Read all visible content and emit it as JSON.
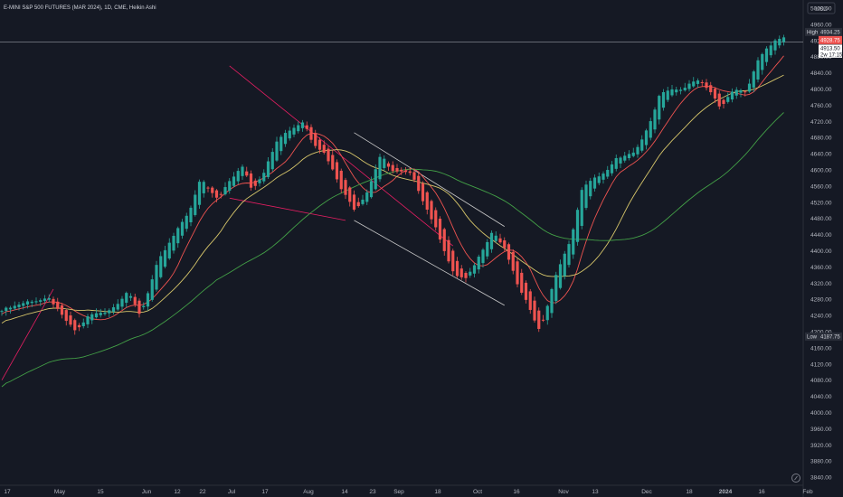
{
  "symbol_title": "E-MINI S&P 500 FUTURES (MAR 2024), 1D, CME, Heikin Ashi",
  "currency": "USD",
  "colors": {
    "background": "#151924",
    "up": "#26a69a",
    "down": "#ef5350",
    "ma_red": "#ef5350",
    "ma_yellow": "#d6c56a",
    "ma_green": "#43a047",
    "trend_pink": "#e91e63",
    "trend_white": "#c8c8c8",
    "axis_text": "#b2b5be",
    "high_badge": "#2a2e39",
    "price_badge": "#ef5350"
  },
  "y_axis_ticks": [
    "5000.00",
    "4960.00",
    "4920.00",
    "4880.00",
    "4840.00",
    "4800.00",
    "4760.00",
    "4720.00",
    "4680.00",
    "4640.00",
    "4600.00",
    "4560.00",
    "4520.00",
    "4480.00",
    "4440.00",
    "4400.00",
    "4360.00",
    "4320.00",
    "4280.00",
    "4240.00",
    "4200.00",
    "4160.00",
    "4120.00",
    "4080.00",
    "4040.00",
    "4000.00",
    "3960.00",
    "3920.00",
    "3880.00",
    "3840.00"
  ],
  "x_axis_ticks": [
    "17",
    "May",
    "15",
    "Jun",
    "12",
    "22",
    "Jul",
    "17",
    "Aug",
    "14",
    "23",
    "Sep",
    "18",
    "Oct",
    "16",
    "Nov",
    "13",
    "Dec",
    "18",
    "2024",
    "16",
    "Feb"
  ],
  "price_labels": {
    "high_text": "High",
    "high_value": "4934.25",
    "current_value": "4928.75",
    "extra_values": [
      "4913.50",
      "2w 17:15"
    ],
    "low_text": "Low",
    "low_value": "4187.75"
  },
  "chart_data": {
    "type": "candlestick",
    "style": "Heikin Ashi",
    "interval": "1D",
    "title": "E-MINI S&P 500 FUTURES (MAR 2024), 1D, CME, Heikin Ashi",
    "ylim": [
      3820,
      5020
    ],
    "y_scale": "linear",
    "grid": false,
    "high": 4934.25,
    "low": 4187.75,
    "last": 4928.75,
    "anchors": [
      [
        0,
        4255
      ],
      [
        6,
        4275
      ],
      [
        11,
        4280
      ],
      [
        14,
        4235
      ],
      [
        17,
        4200
      ],
      [
        20,
        4240
      ],
      [
        24,
        4250
      ],
      [
        26,
        4262
      ],
      [
        29,
        4300
      ],
      [
        32,
        4240
      ],
      [
        36,
        4370
      ],
      [
        40,
        4440
      ],
      [
        44,
        4510
      ],
      [
        46,
        4580
      ],
      [
        50,
        4530
      ],
      [
        53,
        4575
      ],
      [
        56,
        4610
      ],
      [
        58,
        4550
      ],
      [
        61,
        4600
      ],
      [
        64,
        4680
      ],
      [
        67,
        4700
      ],
      [
        70,
        4720
      ],
      [
        72,
        4670
      ],
      [
        75,
        4640
      ],
      [
        79,
        4550
      ],
      [
        82,
        4500
      ],
      [
        85,
        4550
      ],
      [
        88,
        4640
      ],
      [
        90,
        4600
      ],
      [
        95,
        4590
      ],
      [
        98,
        4520
      ],
      [
        101,
        4450
      ],
      [
        105,
        4340
      ],
      [
        108,
        4330
      ],
      [
        111,
        4390
      ],
      [
        114,
        4450
      ],
      [
        117,
        4400
      ],
      [
        120,
        4310
      ],
      [
        123,
        4250
      ],
      [
        125,
        4200
      ],
      [
        129,
        4350
      ],
      [
        132,
        4420
      ],
      [
        135,
        4560
      ],
      [
        138,
        4580
      ],
      [
        141,
        4600
      ],
      [
        143,
        4630
      ],
      [
        147,
        4640
      ],
      [
        150,
        4700
      ],
      [
        153,
        4790
      ],
      [
        158,
        4800
      ],
      [
        162,
        4825
      ],
      [
        165,
        4790
      ],
      [
        167,
        4750
      ],
      [
        170,
        4800
      ],
      [
        173,
        4790
      ],
      [
        176,
        4880
      ],
      [
        180,
        4920
      ],
      [
        182,
        4928.75
      ]
    ],
    "moving_averages": [
      {
        "color": "#ef5350",
        "period": 10
      },
      {
        "color": "#d6c56a",
        "period": 20
      },
      {
        "color": "#43a047",
        "period": 50
      }
    ],
    "trendlines": [
      {
        "color": "#e91e63",
        "from": [
          53,
          4857
        ],
        "to": [
          105,
          4412
        ]
      },
      {
        "color": "#e91e63",
        "from": [
          53,
          4530
        ],
        "to": [
          80,
          4475
        ]
      },
      {
        "color": "#e91e63",
        "from": [
          0,
          4080
        ],
        "to": [
          12,
          4305
        ]
      },
      {
        "color": "#c8c8c8",
        "from": [
          82,
          4692
        ],
        "to": [
          117,
          4460
        ]
      },
      {
        "color": "#c8c8c8",
        "from": [
          82,
          4475
        ],
        "to": [
          117,
          4265
        ]
      }
    ],
    "horizontal_lines": [
      {
        "color": "#9598a1",
        "y": 4916
      }
    ]
  }
}
